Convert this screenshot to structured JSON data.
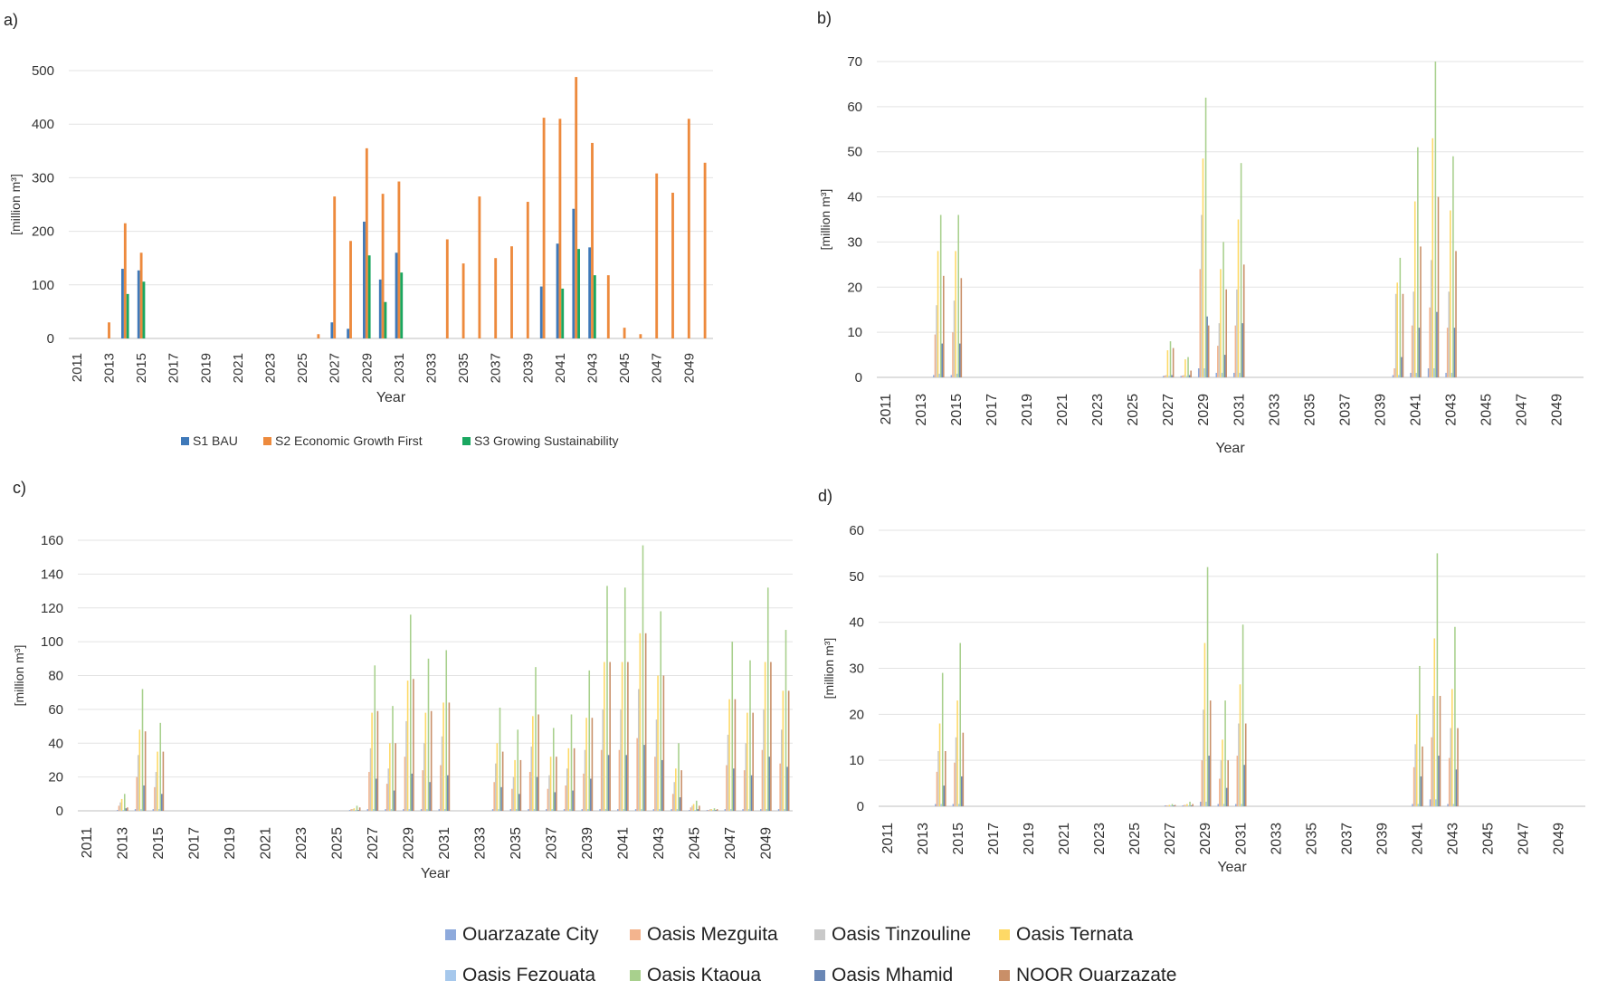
{
  "colors": {
    "s1": "#3f79b9",
    "s2": "#ed8a3d",
    "s3": "#1aa760",
    "ouarzazate_city": "#8eaadc",
    "mezguita": "#f3b48e",
    "tinzouline": "#c9c9c9",
    "ternata": "#fed966",
    "fezouata": "#a6c8ec",
    "ktaoua": "#a8d08d",
    "mhamid": "#6a87b5",
    "noor": "#c98f68",
    "grid": "#e3e3e3",
    "axis": "#bfbfbf"
  },
  "chart_data": [
    {
      "panel": "a)",
      "type": "bar",
      "xlabel": "Year",
      "ylabel": "[million m³]",
      "ylim": [
        0,
        500
      ],
      "yticks": [
        "0",
        "100",
        "200",
        "300",
        "400",
        "500"
      ],
      "grid": true,
      "legend": "bottom",
      "x": [
        2011,
        2012,
        2013,
        2014,
        2015,
        2016,
        2017,
        2018,
        2019,
        2020,
        2021,
        2022,
        2023,
        2024,
        2025,
        2026,
        2027,
        2028,
        2029,
        2030,
        2031,
        2032,
        2033,
        2034,
        2035,
        2036,
        2037,
        2038,
        2039,
        2040,
        2041,
        2042,
        2043,
        2044,
        2045,
        2046,
        2047,
        2048,
        2049,
        2050
      ],
      "xticks": [
        "2011",
        "2013",
        "2015",
        "2017",
        "2019",
        "2021",
        "2023",
        "2025",
        "2027",
        "2029",
        "2031",
        "2033",
        "2035",
        "2037",
        "2039",
        "2041",
        "2043",
        "2045",
        "2047",
        "2049"
      ],
      "series": [
        {
          "name": "S1 BAU",
          "color_key": "s1",
          "values": [
            0,
            0,
            0,
            130,
            127,
            0,
            0,
            0,
            0,
            0,
            0,
            0,
            0,
            0,
            0,
            0,
            30,
            18,
            218,
            110,
            160,
            0,
            0,
            0,
            0,
            0,
            0,
            0,
            0,
            97,
            177,
            242,
            170,
            0,
            0,
            0,
            0,
            0,
            0,
            0
          ]
        },
        {
          "name": "S2 Economic Growth First",
          "color_key": "s2",
          "values": [
            0,
            0,
            30,
            215,
            160,
            0,
            0,
            0,
            0,
            0,
            0,
            0,
            0,
            0,
            0,
            8,
            265,
            182,
            355,
            270,
            293,
            0,
            0,
            185,
            140,
            265,
            150,
            172,
            255,
            412,
            410,
            488,
            365,
            118,
            20,
            8,
            308,
            272,
            410,
            328
          ]
        },
        {
          "name": "S3 Growing Sustainability",
          "color_key": "s3",
          "values": [
            0,
            0,
            0,
            83,
            106,
            0,
            0,
            0,
            0,
            0,
            0,
            0,
            0,
            0,
            0,
            0,
            0,
            0,
            155,
            68,
            123,
            0,
            0,
            0,
            0,
            0,
            0,
            0,
            0,
            0,
            93,
            167,
            118,
            0,
            0,
            0,
            0,
            0,
            0,
            0
          ]
        }
      ]
    },
    {
      "panel": "b)",
      "type": "bar",
      "xlabel": "Year",
      "ylabel": "[million m³]",
      "ylim": [
        0,
        70
      ],
      "yticks": [
        "0",
        "10",
        "20",
        "30",
        "40",
        "50",
        "60",
        "70"
      ],
      "grid": true,
      "x": [
        2011,
        2012,
        2013,
        2014,
        2015,
        2016,
        2017,
        2018,
        2019,
        2020,
        2021,
        2022,
        2023,
        2024,
        2025,
        2026,
        2027,
        2028,
        2029,
        2030,
        2031,
        2032,
        2033,
        2034,
        2035,
        2036,
        2037,
        2038,
        2039,
        2040,
        2041,
        2042,
        2043,
        2044,
        2045,
        2046,
        2047,
        2048,
        2049,
        2050
      ],
      "xticks": [
        "2011",
        "2013",
        "2015",
        "2017",
        "2019",
        "2021",
        "2023",
        "2025",
        "2027",
        "2029",
        "2031",
        "2033",
        "2035",
        "2037",
        "2039",
        "2041",
        "2043",
        "2045",
        "2047",
        "2049"
      ],
      "groups": [
        {
          "year": 2014,
          "values": [
            0.5,
            9.5,
            16,
            28,
            0.8,
            36,
            7.5,
            22.5
          ]
        },
        {
          "year": 2015,
          "values": [
            0.5,
            10,
            17,
            28,
            0.8,
            36,
            7.5,
            22
          ]
        },
        {
          "year": 2027,
          "values": [
            0.3,
            0.4,
            0.5,
            6,
            0.3,
            8,
            0.5,
            6.5
          ]
        },
        {
          "year": 2028,
          "values": [
            0.3,
            0.4,
            0.5,
            4,
            0.3,
            4.5,
            0.5,
            1.5
          ]
        },
        {
          "year": 2029,
          "values": [
            2,
            24,
            36,
            48.5,
            2,
            62,
            13.5,
            11.5
          ]
        },
        {
          "year": 2030,
          "values": [
            1,
            7,
            12,
            24,
            1,
            30,
            5,
            19.5
          ]
        },
        {
          "year": 2031,
          "values": [
            1,
            11.5,
            19.5,
            35,
            1,
            47.5,
            12,
            25
          ]
        },
        {
          "year": 2040,
          "values": [
            0.5,
            2,
            18.5,
            21,
            0.5,
            26.5,
            4.5,
            18.5
          ]
        },
        {
          "year": 2041,
          "values": [
            1,
            11.5,
            19,
            39,
            1,
            51,
            11,
            29
          ]
        },
        {
          "year": 2042,
          "values": [
            2,
            15.5,
            26,
            53,
            2,
            70,
            14.5,
            40
          ]
        },
        {
          "year": 2043,
          "values": [
            1,
            11,
            19,
            37,
            1,
            49,
            11,
            28
          ]
        }
      ]
    },
    {
      "panel": "c)",
      "type": "bar",
      "xlabel": "Year",
      "ylabel": "[million m³]",
      "ylim": [
        0,
        160
      ],
      "yticks": [
        "0",
        "20",
        "40",
        "60",
        "80",
        "100",
        "120",
        "140",
        "160"
      ],
      "grid": true,
      "x": [
        2011,
        2012,
        2013,
        2014,
        2015,
        2016,
        2017,
        2018,
        2019,
        2020,
        2021,
        2022,
        2023,
        2024,
        2025,
        2026,
        2027,
        2028,
        2029,
        2030,
        2031,
        2032,
        2033,
        2034,
        2035,
        2036,
        2037,
        2038,
        2039,
        2040,
        2041,
        2042,
        2043,
        2044,
        2045,
        2046,
        2047,
        2048,
        2049,
        2050
      ],
      "xticks": [
        "2011",
        "2013",
        "2015",
        "2017",
        "2019",
        "2021",
        "2023",
        "2025",
        "2027",
        "2029",
        "2031",
        "2033",
        "2035",
        "2037",
        "2039",
        "2041",
        "2043",
        "2045",
        "2047",
        "2049"
      ],
      "groups": [
        {
          "year": 2013,
          "values": [
            0.5,
            3,
            5,
            7,
            0.5,
            10,
            1.5,
            2
          ]
        },
        {
          "year": 2014,
          "values": [
            1,
            20,
            33,
            48,
            1,
            72,
            15,
            47
          ]
        },
        {
          "year": 2015,
          "values": [
            1,
            14,
            23,
            35,
            1,
            52,
            10,
            35
          ]
        },
        {
          "year": 2026,
          "values": [
            0.5,
            1,
            1,
            1.5,
            0.5,
            3,
            0.5,
            2
          ]
        },
        {
          "year": 2027,
          "values": [
            1,
            23,
            37,
            58,
            1,
            86,
            19,
            59
          ]
        },
        {
          "year": 2028,
          "values": [
            1,
            16,
            25,
            40,
            1,
            62,
            12,
            40
          ]
        },
        {
          "year": 2029,
          "values": [
            1,
            32,
            53,
            77,
            1,
            116,
            22,
            78
          ]
        },
        {
          "year": 2030,
          "values": [
            1,
            24,
            40,
            58,
            1,
            90,
            17,
            59
          ]
        },
        {
          "year": 2031,
          "values": [
            1,
            27,
            44,
            64,
            1,
            95,
            21,
            64
          ]
        },
        {
          "year": 2034,
          "values": [
            1,
            17,
            28,
            40,
            1,
            61,
            14,
            35
          ]
        },
        {
          "year": 2035,
          "values": [
            1,
            13,
            20,
            30,
            1,
            48,
            10,
            30
          ]
        },
        {
          "year": 2036,
          "values": [
            1,
            23,
            38,
            56,
            1,
            85,
            20,
            57
          ]
        },
        {
          "year": 2037,
          "values": [
            1,
            13,
            21,
            32,
            1,
            49,
            11,
            32
          ]
        },
        {
          "year": 2038,
          "values": [
            1,
            15,
            25,
            37,
            1,
            57,
            12,
            37
          ]
        },
        {
          "year": 2039,
          "values": [
            1,
            22,
            36,
            55,
            1,
            83,
            19,
            55
          ]
        },
        {
          "year": 2040,
          "values": [
            1,
            36,
            60,
            88,
            1,
            133,
            33,
            88
          ]
        },
        {
          "year": 2041,
          "values": [
            1,
            36,
            60,
            88,
            1,
            132,
            33,
            88
          ]
        },
        {
          "year": 2042,
          "values": [
            1,
            43,
            72,
            105,
            1,
            157,
            39,
            105
          ]
        },
        {
          "year": 2043,
          "values": [
            1,
            32,
            54,
            80,
            1,
            118,
            30,
            80
          ]
        },
        {
          "year": 2044,
          "values": [
            1,
            10,
            17,
            25,
            1,
            40,
            8,
            24
          ]
        },
        {
          "year": 2045,
          "values": [
            0.5,
            2,
            3,
            4,
            0.5,
            6,
            1,
            3
          ]
        },
        {
          "year": 2046,
          "values": [
            0.5,
            0.5,
            1,
            1,
            0.5,
            1.5,
            0.5,
            1
          ]
        },
        {
          "year": 2047,
          "values": [
            1,
            27,
            45,
            66,
            1,
            100,
            25,
            66
          ]
        },
        {
          "year": 2048,
          "values": [
            1,
            24,
            40,
            58,
            1,
            89,
            21,
            58
          ]
        },
        {
          "year": 2049,
          "values": [
            1,
            36,
            60,
            88,
            1,
            132,
            32,
            88
          ]
        },
        {
          "year": 2050,
          "values": [
            1,
            28,
            48,
            71,
            1,
            107,
            26,
            71
          ]
        }
      ]
    },
    {
      "panel": "d)",
      "type": "bar",
      "xlabel": "Year",
      "ylabel": "[million m³]",
      "ylim": [
        0,
        60
      ],
      "yticks": [
        "0",
        "10",
        "20",
        "30",
        "40",
        "50",
        "60"
      ],
      "grid": true,
      "x": [
        2011,
        2012,
        2013,
        2014,
        2015,
        2016,
        2017,
        2018,
        2019,
        2020,
        2021,
        2022,
        2023,
        2024,
        2025,
        2026,
        2027,
        2028,
        2029,
        2030,
        2031,
        2032,
        2033,
        2034,
        2035,
        2036,
        2037,
        2038,
        2039,
        2040,
        2041,
        2042,
        2043,
        2044,
        2045,
        2046,
        2047,
        2048,
        2049,
        2050
      ],
      "xticks": [
        "2011",
        "2013",
        "2015",
        "2017",
        "2019",
        "2021",
        "2023",
        "2025",
        "2027",
        "2029",
        "2031",
        "2033",
        "2035",
        "2037",
        "2039",
        "2041",
        "2043",
        "2045",
        "2047",
        "2049"
      ],
      "groups": [
        {
          "year": 2014,
          "values": [
            0.5,
            7.5,
            12,
            18,
            0.5,
            29,
            4.5,
            12
          ]
        },
        {
          "year": 2015,
          "values": [
            0.5,
            9.5,
            15,
            23,
            0.5,
            35.5,
            6.5,
            16
          ]
        },
        {
          "year": 2027,
          "values": [
            0.2,
            0.2,
            0.2,
            0.3,
            0.2,
            0.5,
            0.2,
            0.3
          ]
        },
        {
          "year": 2028,
          "values": [
            0.2,
            0.3,
            0.3,
            0.5,
            0.2,
            1,
            0.2,
            0.5
          ]
        },
        {
          "year": 2029,
          "values": [
            1,
            10,
            21,
            35.5,
            1,
            52,
            11,
            23
          ]
        },
        {
          "year": 2030,
          "values": [
            0.5,
            6,
            10,
            14.5,
            0.5,
            23,
            4,
            10
          ]
        },
        {
          "year": 2031,
          "values": [
            0.5,
            11,
            18,
            26.5,
            0.5,
            39.5,
            9,
            18
          ]
        },
        {
          "year": 2041,
          "values": [
            0.5,
            8.5,
            13.5,
            20,
            0.5,
            30.5,
            6.5,
            13
          ]
        },
        {
          "year": 2042,
          "values": [
            1.5,
            15,
            24,
            36.5,
            1.5,
            55,
            11,
            24
          ]
        },
        {
          "year": 2043,
          "values": [
            0.5,
            10.5,
            17,
            25.5,
            0.5,
            39,
            8,
            17
          ]
        }
      ]
    }
  ],
  "legend_a": [
    {
      "label": "S1 BAU",
      "color_key": "s1"
    },
    {
      "label": "S2 Economic Growth First",
      "color_key": "s2"
    },
    {
      "label": "S3 Growing Sustainability",
      "color_key": "s3"
    }
  ],
  "legend_main": [
    {
      "label": "Ouarzazate City",
      "color_key": "ouarzazate_city"
    },
    {
      "label": "Oasis Mezguita",
      "color_key": "mezguita"
    },
    {
      "label": "Oasis Tinzouline",
      "color_key": "tinzouline"
    },
    {
      "label": "Oasis Ternata",
      "color_key": "ternata"
    },
    {
      "label": "Oasis Fezouata",
      "color_key": "fezouata"
    },
    {
      "label": "Oasis Ktaoua",
      "color_key": "ktaoua"
    },
    {
      "label": "Oasis Mhamid",
      "color_key": "mhamid"
    },
    {
      "label": "NOOR Ouarzazate",
      "color_key": "noor"
    }
  ]
}
